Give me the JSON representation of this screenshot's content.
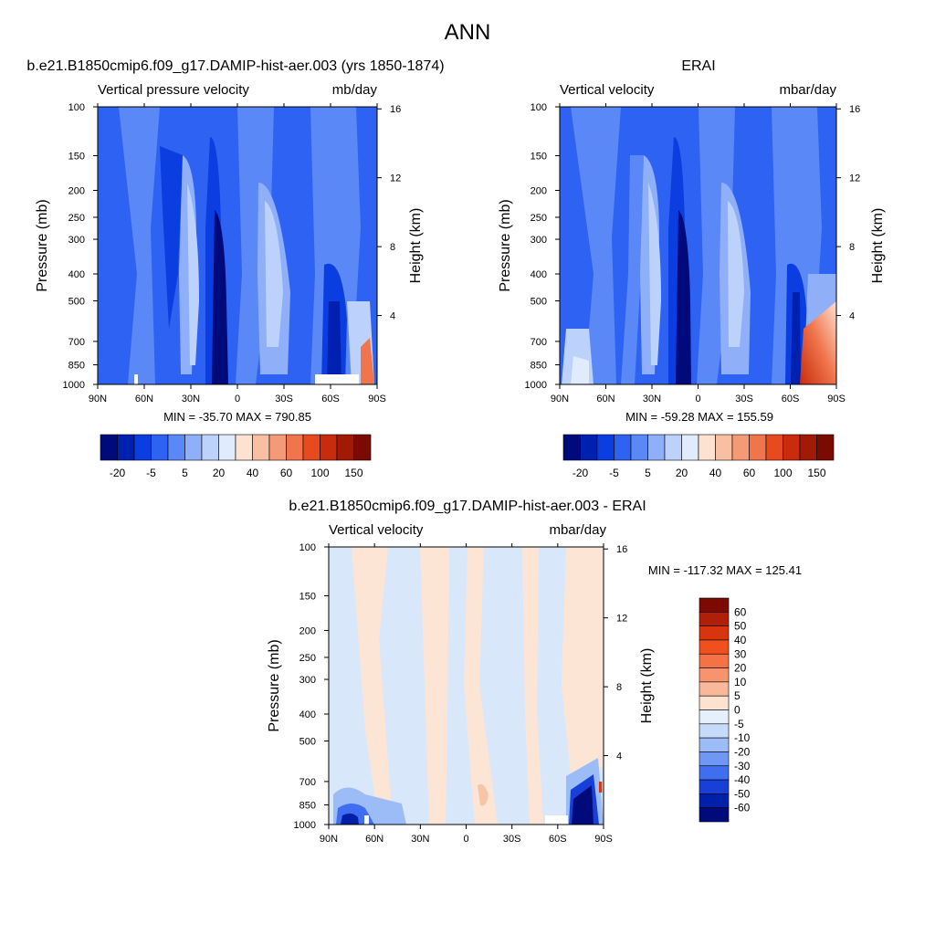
{
  "figure": {
    "title": "ANN"
  },
  "panels": [
    {
      "id": "model",
      "title": "b.e21.B1850cmip6.f09_g17.DAMIP-hist-aer.003 (yrs 1850-1874)",
      "left_label": "Vertical pressure velocity",
      "right_label": "mb/day",
      "ylabel": "Pressure (mb)",
      "y2label": "Height (km)",
      "stats": "MIN = -35.70  MAX = 790.85"
    },
    {
      "id": "obs",
      "title": "ERAI",
      "left_label": "Vertical velocity",
      "right_label": "mbar/day",
      "ylabel": "Pressure (mb)",
      "y2label": "Height (km)",
      "stats": "MIN = -59.28  MAX = 155.59"
    },
    {
      "id": "diff",
      "title": "b.e21.B1850cmip6.f09_g17.DAMIP-hist-aer.003 - ERAI",
      "left_label": "Vertical velocity",
      "right_label": "mbar/day",
      "ylabel": "Pressure (mb)",
      "y2label": "Height (km)",
      "stats": "MIN = -117.32  MAX = 125.41"
    }
  ],
  "chart_data": [
    {
      "type": "heatmap",
      "panel": "model",
      "x_ticks": [
        "90N",
        "60N",
        "30N",
        "0",
        "30S",
        "60S",
        "90S"
      ],
      "y_ticks": [
        "100",
        "150",
        "200",
        "250",
        "300",
        "400",
        "500",
        "700",
        "850",
        "1000"
      ],
      "y2_ticks": [
        "16",
        "12",
        "8",
        "4"
      ],
      "colorbar": {
        "orientation": "horizontal",
        "labels": [
          "-20",
          "-5",
          "5",
          "20",
          "40",
          "60",
          "100",
          "150"
        ],
        "colors": [
          "#000a7a",
          "#0020b0",
          "#0a3ee0",
          "#2e62f2",
          "#5a88f6",
          "#8fb0f8",
          "#bcd2fa",
          "#e0ecfc",
          "#fde2d2",
          "#f9bfa2",
          "#f59a76",
          "#f0744c",
          "#e64a1e",
          "#c82c0c",
          "#a01a06",
          "#7a0a02"
        ]
      }
    },
    {
      "type": "heatmap",
      "panel": "obs",
      "x_ticks": [
        "90N",
        "60N",
        "30N",
        "0",
        "30S",
        "60S",
        "90S"
      ],
      "y_ticks": [
        "100",
        "150",
        "200",
        "250",
        "300",
        "400",
        "500",
        "700",
        "850",
        "1000"
      ],
      "y2_ticks": [
        "16",
        "12",
        "8",
        "4"
      ],
      "colorbar": {
        "orientation": "horizontal",
        "labels": [
          "-20",
          "-5",
          "5",
          "20",
          "40",
          "60",
          "100",
          "150"
        ],
        "colors": [
          "#000a7a",
          "#0020b0",
          "#0a3ee0",
          "#2e62f2",
          "#5a88f6",
          "#8fb0f8",
          "#bcd2fa",
          "#e0ecfc",
          "#fde2d2",
          "#f9bfa2",
          "#f59a76",
          "#f0744c",
          "#e64a1e",
          "#c82c0c",
          "#a01a06",
          "#7a0a02"
        ]
      }
    },
    {
      "type": "heatmap",
      "panel": "diff",
      "x_ticks": [
        "90N",
        "60N",
        "30N",
        "0",
        "30S",
        "60S",
        "90S"
      ],
      "y_ticks": [
        "100",
        "150",
        "200",
        "250",
        "300",
        "400",
        "500",
        "700",
        "850",
        "1000"
      ],
      "y2_ticks": [
        "16",
        "12",
        "8",
        "4"
      ],
      "colorbar": {
        "orientation": "vertical",
        "labels": [
          "60",
          "50",
          "40",
          "30",
          "20",
          "10",
          "5",
          "0",
          "-5",
          "-10",
          "-20",
          "-30",
          "-40",
          "-50",
          "-60"
        ],
        "colors": [
          "#7a0a02",
          "#b02008",
          "#d8340e",
          "#f0501e",
          "#f47244",
          "#f7946e",
          "#fab89a",
          "#fde2d0",
          "#e6f0fc",
          "#c6dafa",
          "#9cbcf8",
          "#6f98f4",
          "#3f6ef0",
          "#1840d8",
          "#0020a8",
          "#000a7a"
        ]
      }
    }
  ]
}
